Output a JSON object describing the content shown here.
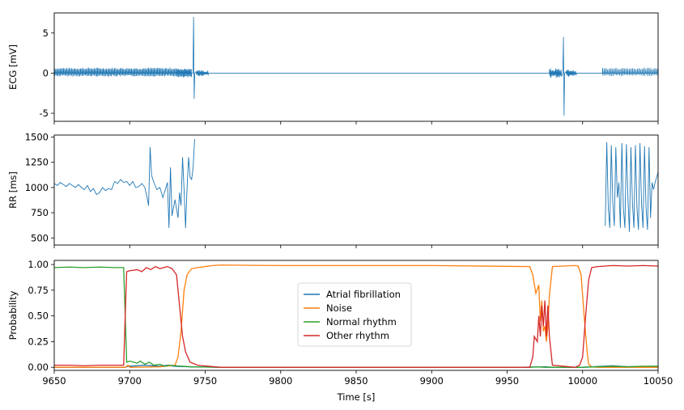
{
  "chart_data": [
    {
      "type": "line",
      "panel": "ecg",
      "ylabel": "ECG [mV]",
      "xlim": [
        9650,
        10050
      ],
      "ylim": [
        -6,
        7.5
      ],
      "yticks": [
        -5,
        0,
        5
      ],
      "segments": [
        {
          "kind": "burst",
          "x0": 9650,
          "x1": 9731,
          "amp_up": 0.6,
          "amp_down": -0.35,
          "period": 0.75
        },
        {
          "kind": "noisy",
          "x0": 9731,
          "x1": 9741,
          "amp_up": 0.5,
          "amp_down": -0.5,
          "period": 0.6
        },
        {
          "kind": "spike",
          "x": 9742.5,
          "peak": 7.0,
          "trough": -3.2
        },
        {
          "kind": "ring",
          "x0": 9744,
          "x1": 9752,
          "amp": 0.25
        },
        {
          "kind": "flat",
          "x0": 9752,
          "x1": 9978
        },
        {
          "kind": "ring",
          "x0": 9978,
          "x1": 9986,
          "amp": 0.4
        },
        {
          "kind": "spike",
          "x": 9987.5,
          "peak": 4.5,
          "trough": -5.3
        },
        {
          "kind": "ring",
          "x0": 9989,
          "x1": 9996,
          "amp": 0.3
        },
        {
          "kind": "flat",
          "x0": 9996,
          "x1": 10012
        },
        {
          "kind": "burst",
          "x0": 10013,
          "x1": 10050,
          "amp_up": 0.6,
          "amp_down": -0.3,
          "period": 1.1
        }
      ],
      "color": "#1f77b4"
    },
    {
      "type": "line",
      "panel": "rr",
      "ylabel": "RR [ms]",
      "xlim": [
        9650,
        10050
      ],
      "ylim": [
        430,
        1520
      ],
      "yticks": [
        500,
        750,
        1000,
        1250,
        1500
      ],
      "series": [
        {
          "x": [
            9650,
            9652,
            9654,
            9656,
            9658,
            9660,
            9662,
            9664,
            9666,
            9668,
            9670,
            9672,
            9674,
            9676,
            9678,
            9680,
            9682,
            9684,
            9686,
            9688,
            9690,
            9692,
            9694,
            9696,
            9698,
            9700,
            9702,
            9704,
            9706,
            9708,
            9710,
            9711.5,
            9712.5,
            9713.5,
            9714.5,
            9716,
            9718,
            9720,
            9722,
            9724,
            9725,
            9726,
            9727,
            9728,
            9730,
            9732,
            9733,
            9734,
            9735,
            9736,
            9737,
            9738,
            9739,
            9740,
            9741,
            9742,
            9743
          ],
          "y": [
            1040,
            1020,
            1050,
            1030,
            1010,
            1040,
            1020,
            1000,
            1030,
            1000,
            980,
            1020,
            960,
            990,
            930,
            950,
            1000,
            970,
            990,
            980,
            1060,
            1040,
            1080,
            1050,
            1060,
            1020,
            1060,
            1000,
            1010,
            1040,
            1000,
            900,
            820,
            1400,
            1120,
            1050,
            980,
            1000,
            900,
            1000,
            1050,
            600,
            1200,
            720,
            880,
            700,
            950,
            820,
            1300,
            980,
            600,
            1000,
            1300,
            1100,
            1080,
            1200,
            1480
          ]
        },
        {
          "x": [
            10015,
            10016,
            10017,
            10018,
            10019,
            10020,
            10021,
            10022,
            10023,
            10024,
            10025,
            10026,
            10027,
            10028,
            10029,
            10030,
            10031,
            10032,
            10033,
            10034,
            10035,
            10036,
            10037,
            10038,
            10039,
            10040,
            10041,
            10042,
            10043,
            10044,
            10045,
            10046,
            10047,
            10048,
            10049,
            10050
          ],
          "y": [
            620,
            1450,
            800,
            600,
            1420,
            850,
            620,
            1400,
            900,
            1050,
            600,
            1440,
            800,
            600,
            1430,
            900,
            560,
            1400,
            850,
            600,
            1420,
            800,
            580,
            1440,
            850,
            600,
            1410,
            800,
            580,
            1400,
            700,
            1050,
            980,
            1050,
            1100,
            1150
          ]
        }
      ],
      "color": "#1f77b4"
    },
    {
      "type": "line",
      "panel": "probability",
      "xlabel": "Time [s]",
      "ylabel": "Probability",
      "xlim": [
        9650,
        10050
      ],
      "ylim": [
        -0.03,
        1.04
      ],
      "xticks": [
        9650,
        9700,
        9750,
        9800,
        9850,
        9900,
        9950,
        10000,
        10050
      ],
      "yticks": [
        0.0,
        0.25,
        0.5,
        0.75,
        1.0
      ],
      "ytick_labels": [
        "0.00",
        "0.25",
        "0.50",
        "0.75",
        "1.00"
      ],
      "legend_position": "center",
      "series": [
        {
          "name": "Atrial fibrillation",
          "color": "#1f77b4",
          "x": [
            9650,
            9697,
            9699,
            9710,
            9720,
            9725,
            9730,
            9740,
            9760,
            9960,
            9975,
            9980,
            10000,
            10020,
            10030,
            10050
          ],
          "y": [
            0.0,
            0.0,
            0.01,
            0.02,
            0.01,
            0.02,
            0.01,
            0.005,
            0.0,
            0.0,
            0.005,
            0.0,
            0.0,
            0.015,
            0.005,
            0.01
          ]
        },
        {
          "name": "Noise",
          "color": "#ff7f0e",
          "x": [
            9650,
            9697,
            9699,
            9700,
            9720,
            9730,
            9732,
            9734,
            9736,
            9738,
            9741,
            9745,
            9750,
            9755,
            9760,
            9800,
            9900,
            9965,
            9967,
            9969,
            9971,
            9972,
            9973,
            9974,
            9975,
            9976,
            9977,
            9978,
            9980,
            9995,
            9997,
            9999,
            10001,
            10003,
            10004,
            10006,
            10010,
            10050
          ],
          "y": [
            0.0,
            0.0,
            0.02,
            0.0,
            0.005,
            0.02,
            0.1,
            0.35,
            0.75,
            0.9,
            0.96,
            0.97,
            0.98,
            0.99,
            0.995,
            0.99,
            0.99,
            0.98,
            0.9,
            0.72,
            0.8,
            0.45,
            0.65,
            0.35,
            0.4,
            0.25,
            0.4,
            0.7,
            0.98,
            0.99,
            0.985,
            0.9,
            0.5,
            0.15,
            0.03,
            0.005,
            0.0,
            0.0
          ]
        },
        {
          "name": "Normal rhythm",
          "color": "#2ca02c",
          "x": [
            9650,
            9660,
            9670,
            9680,
            9690,
            9696,
            9697,
            9698,
            9700,
            9705,
            9707,
            9710,
            9713,
            9716,
            9720,
            9723,
            9726,
            9730,
            9735,
            9740,
            9760,
            9965,
            9970,
            9975,
            9980,
            10000,
            10010,
            10020,
            10030,
            10040,
            10050
          ],
          "y": [
            0.97,
            0.975,
            0.97,
            0.975,
            0.97,
            0.97,
            0.5,
            0.05,
            0.06,
            0.04,
            0.06,
            0.03,
            0.05,
            0.02,
            0.03,
            0.01,
            0.02,
            0.015,
            0.01,
            0.005,
            0.0,
            0.0,
            0.005,
            0.0,
            0.0,
            0.0,
            0.005,
            0.01,
            0.005,
            0.01,
            0.01
          ]
        },
        {
          "name": "Other rhythm",
          "color": "#d62728",
          "x": [
            9650,
            9660,
            9670,
            9680,
            9690,
            9696,
            9697,
            9698,
            9700,
            9705,
            9708,
            9711,
            9714,
            9717,
            9720,
            9725,
            9728,
            9731,
            9733,
            9735,
            9737,
            9740,
            9745,
            9760,
            9900,
            9965,
            9967,
            9968,
            9970,
            9971,
            9972,
            9973,
            9974,
            9975,
            9976,
            9977,
            9978,
            9980,
            9995,
            9998,
            10000,
            10002,
            10004,
            10006,
            10010,
            10020,
            10030,
            10040,
            10050
          ],
          "y": [
            0.02,
            0.02,
            0.015,
            0.02,
            0.02,
            0.02,
            0.5,
            0.93,
            0.94,
            0.95,
            0.93,
            0.97,
            0.95,
            0.98,
            0.96,
            0.98,
            0.96,
            0.9,
            0.6,
            0.3,
            0.15,
            0.05,
            0.02,
            0.0,
            0.0,
            0.0,
            0.1,
            0.3,
            0.25,
            0.5,
            0.3,
            0.6,
            0.4,
            0.65,
            0.3,
            0.6,
            0.3,
            0.02,
            0.0,
            0.02,
            0.1,
            0.5,
            0.85,
            0.97,
            0.98,
            0.99,
            0.985,
            0.99,
            0.985
          ]
        }
      ]
    }
  ]
}
